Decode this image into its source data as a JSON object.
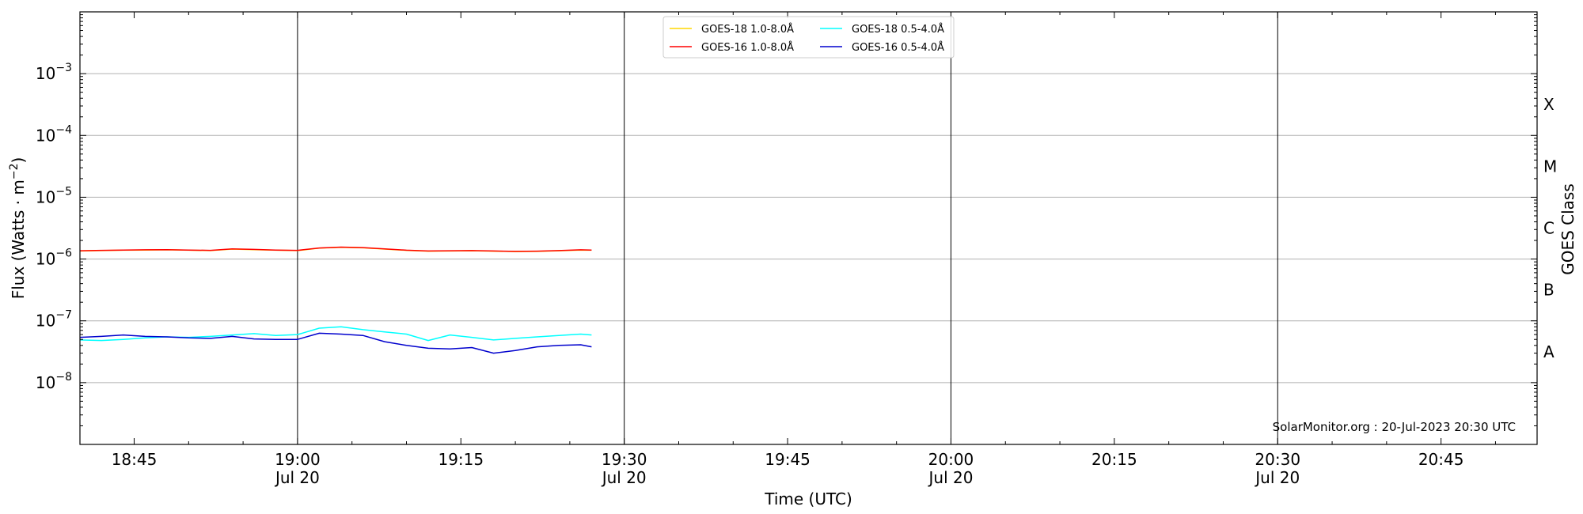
{
  "chart_data": {
    "type": "line",
    "title": "",
    "xlabel": "Time (UTC)",
    "ylabel": "Flux (Watts · m",
    "ylabel_sup": "−2",
    "ylabel_close": ")",
    "y2label": "GOES Class",
    "y_scale": "log",
    "ylim_exp": [
      -9,
      -2
    ],
    "xlim_min": [
      18.667,
      20.897
    ],
    "x_ticks": [
      {
        "label": "18:45",
        "sub": "",
        "t": 18.75
      },
      {
        "label": "19:00",
        "sub": "Jul 20",
        "t": 19.0
      },
      {
        "label": "19:15",
        "sub": "",
        "t": 19.25
      },
      {
        "label": "19:30",
        "sub": "Jul 20",
        "t": 19.5
      },
      {
        "label": "19:45",
        "sub": "",
        "t": 19.75
      },
      {
        "label": "20:00",
        "sub": "Jul 20",
        "t": 20.0
      },
      {
        "label": "20:15",
        "sub": "",
        "t": 20.25
      },
      {
        "label": "20:30",
        "sub": "Jul 20",
        "t": 20.5
      },
      {
        "label": "20:45",
        "sub": "",
        "t": 20.75
      }
    ],
    "y_ticks": [
      {
        "base": "10",
        "exp": "−8",
        "e": -8
      },
      {
        "base": "10",
        "exp": "−7",
        "e": -7
      },
      {
        "base": "10",
        "exp": "−6",
        "e": -6
      },
      {
        "base": "10",
        "exp": "−5",
        "e": -5
      },
      {
        "base": "10",
        "exp": "−4",
        "e": -4
      },
      {
        "base": "10",
        "exp": "−3",
        "e": -3
      }
    ],
    "goes_classes": [
      {
        "label": "A",
        "e": -7.5
      },
      {
        "label": "B",
        "e": -6.5
      },
      {
        "label": "C",
        "e": -5.5
      },
      {
        "label": "M",
        "e": -4.5
      },
      {
        "label": "X",
        "e": -3.5
      }
    ],
    "vlines": [
      19.0,
      19.5,
      20.0,
      20.5
    ],
    "grid": "horizontal",
    "legend": {
      "placement": "top-center",
      "entries": [
        {
          "name": "GOES-18 1.0-8.0Å",
          "color": "#ffd700"
        },
        {
          "name": "GOES-18 0.5-4.0Å",
          "color": "#00ffff"
        },
        {
          "name": "GOES-16 1.0-8.0Å",
          "color": "#ff0000"
        },
        {
          "name": "GOES-16 0.5-4.0Å",
          "color": "#0000cd"
        }
      ]
    },
    "x": [
      "18:40",
      "18:42",
      "18:44",
      "18:46",
      "18:48",
      "18:50",
      "18:52",
      "18:54",
      "18:56",
      "18:58",
      "19:00",
      "19:02",
      "19:04",
      "19:06",
      "19:08",
      "19:10",
      "19:12",
      "19:14",
      "19:16",
      "19:18",
      "19:20",
      "19:22",
      "19:24",
      "19:26",
      "19:27"
    ],
    "series": [
      {
        "name": "GOES-18 1.0-8.0Å",
        "color": "#ffd700",
        "values": [
          1.35e-06,
          1.37e-06,
          1.39e-06,
          1.4e-06,
          1.41e-06,
          1.39e-06,
          1.37e-06,
          1.45e-06,
          1.42e-06,
          1.39e-06,
          1.37e-06,
          1.5e-06,
          1.55e-06,
          1.52e-06,
          1.45e-06,
          1.38e-06,
          1.34e-06,
          1.35e-06,
          1.36e-06,
          1.34e-06,
          1.32e-06,
          1.33e-06,
          1.36e-06,
          1.4e-06,
          1.39e-06
        ]
      },
      {
        "name": "GOES-16 1.0-8.0Å",
        "color": "#ff0000",
        "values": [
          1.36e-06,
          1.38e-06,
          1.4e-06,
          1.41e-06,
          1.42e-06,
          1.4e-06,
          1.38e-06,
          1.46e-06,
          1.43e-06,
          1.4e-06,
          1.38e-06,
          1.51e-06,
          1.56e-06,
          1.53e-06,
          1.46e-06,
          1.39e-06,
          1.35e-06,
          1.36e-06,
          1.37e-06,
          1.35e-06,
          1.33e-06,
          1.34e-06,
          1.37e-06,
          1.41e-06,
          1.4e-06
        ]
      },
      {
        "name": "GOES-18 0.5-4.0Å",
        "color": "#00ffff",
        "values": [
          4.9e-08,
          4.8e-08,
          5e-08,
          5.3e-08,
          5.5e-08,
          5.4e-08,
          5.6e-08,
          5.9e-08,
          6.2e-08,
          5.8e-08,
          6e-08,
          7.6e-08,
          8e-08,
          7.2e-08,
          6.6e-08,
          6.1e-08,
          4.8e-08,
          5.9e-08,
          5.4e-08,
          4.9e-08,
          5.2e-08,
          5.5e-08,
          5.8e-08,
          6.1e-08,
          5.9e-08
        ]
      },
      {
        "name": "GOES-16 0.5-4.0Å",
        "color": "#0000cd",
        "values": [
          5.4e-08,
          5.6e-08,
          5.9e-08,
          5.6e-08,
          5.5e-08,
          5.3e-08,
          5.2e-08,
          5.6e-08,
          5.1e-08,
          5e-08,
          5e-08,
          6.3e-08,
          6.1e-08,
          5.8e-08,
          4.6e-08,
          4e-08,
          3.6e-08,
          3.5e-08,
          3.7e-08,
          3e-08,
          3.3e-08,
          3.8e-08,
          4e-08,
          4.1e-08,
          3.8e-08
        ]
      }
    ]
  },
  "watermark": "SolarMonitor.org : 20-Jul-2023 20:30 UTC"
}
